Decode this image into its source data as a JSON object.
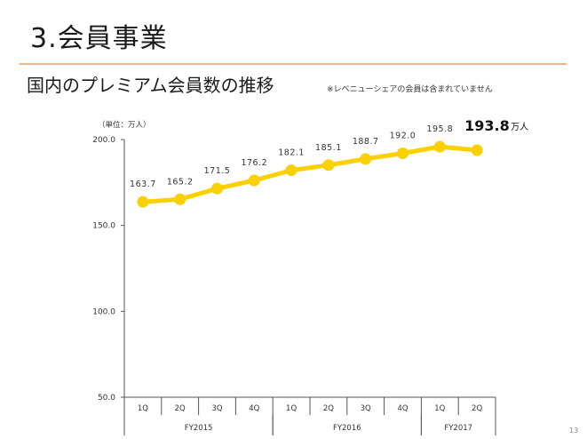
{
  "header": {
    "section_title": "3.会員事業",
    "subtitle": "国内のプレミアム会員数の推移",
    "note": "※レベニューシェアの会員は含まれていません"
  },
  "page_number": "13",
  "colors": {
    "accent_rule": "#f0b58a",
    "series": "#fad000",
    "axis": "#555555"
  },
  "chart_data": {
    "type": "line",
    "unit_note": "（単位：万人）",
    "unit_suffix": "万人",
    "ylim": [
      50,
      200
    ],
    "y_ticks": [
      {
        "value": 50,
        "label": "50.0"
      },
      {
        "value": 100,
        "label": "100.0"
      },
      {
        "value": 150,
        "label": "150.0"
      },
      {
        "value": 200,
        "label": "200.0"
      }
    ],
    "categories": [
      "1Q",
      "2Q",
      "3Q",
      "4Q",
      "1Q",
      "2Q",
      "3Q",
      "4Q",
      "1Q",
      "2Q"
    ],
    "fiscal_years": [
      {
        "label": "FY2015",
        "start": 0,
        "end": 3
      },
      {
        "label": "FY2016",
        "start": 4,
        "end": 7
      },
      {
        "label": "FY2017",
        "start": 8,
        "end": 9
      }
    ],
    "series": [
      {
        "values": [
          163.7,
          165.2,
          171.5,
          176.2,
          182.1,
          185.1,
          188.7,
          192.0,
          195.8,
          193.8
        ],
        "labels": [
          "163.7",
          "165.2",
          "171.5",
          "176.2",
          "182.1",
          "185.1",
          "188.7",
          "192.0",
          "195.8",
          "193.8"
        ]
      }
    ],
    "grid": false,
    "legend": "none"
  }
}
